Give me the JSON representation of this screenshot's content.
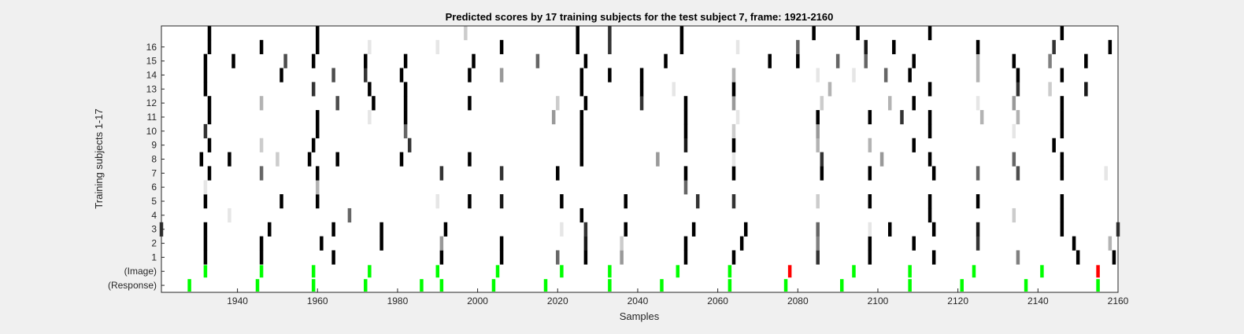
{
  "chart_data": {
    "type": "heatmap",
    "title": "Predicted scores by 17 training subjects for the test subject 7, frame: 1921-2160",
    "xlabel": "Samples",
    "ylabel": "Training subjects 1-17",
    "xlim": [
      1921,
      2160
    ],
    "xticks": [
      1940,
      1960,
      1980,
      2000,
      2020,
      2040,
      2060,
      2080,
      2100,
      2120,
      2140,
      2160
    ],
    "rows": [
      "(Response)",
      "(Image)",
      "1",
      "2",
      "3",
      "4",
      "5",
      "6",
      "7",
      "8",
      "9",
      "10",
      "11",
      "12",
      "13",
      "14",
      "15",
      "16",
      ""
    ],
    "colors": {
      "high": "#000000",
      "low": "#ffffff",
      "response": "#00ff00",
      "image_match": "#00ff00",
      "image_mismatch": "#ff0000"
    },
    "response_events": [
      1928,
      1945,
      1959,
      1972,
      1986,
      1991,
      2004,
      2017,
      2033,
      2046,
      2063,
      2077,
      2091,
      2108,
      2121,
      2137,
      2155
    ],
    "image_events": [
      {
        "x": 1932,
        "status": "match"
      },
      {
        "x": 1946,
        "status": "match"
      },
      {
        "x": 1959,
        "status": "match"
      },
      {
        "x": 1973,
        "status": "match"
      },
      {
        "x": 1990,
        "status": "match"
      },
      {
        "x": 2005,
        "status": "match"
      },
      {
        "x": 2021,
        "status": "match"
      },
      {
        "x": 2033,
        "status": "match"
      },
      {
        "x": 2050,
        "status": "match"
      },
      {
        "x": 2063,
        "status": "match"
      },
      {
        "x": 2078,
        "status": "mismatch"
      },
      {
        "x": 2094,
        "status": "match"
      },
      {
        "x": 2108,
        "status": "match"
      },
      {
        "x": 2124,
        "status": "match"
      },
      {
        "x": 2141,
        "status": "match"
      },
      {
        "x": 2155,
        "status": "mismatch"
      }
    ],
    "score_cells": [
      {
        "row": "1",
        "x": 1932,
        "v": 1
      },
      {
        "row": "1",
        "x": 1946,
        "v": 1
      },
      {
        "row": "1",
        "x": 1964,
        "v": 1
      },
      {
        "row": "1",
        "x": 1991,
        "v": 1
      },
      {
        "row": "1",
        "x": 2006,
        "v": 1
      },
      {
        "row": "1",
        "x": 2020,
        "v": 0.6
      },
      {
        "row": "1",
        "x": 2027,
        "v": 1
      },
      {
        "row": "1",
        "x": 2036,
        "v": 0.4
      },
      {
        "row": "1",
        "x": 2052,
        "v": 1
      },
      {
        "row": "1",
        "x": 2064,
        "v": 1
      },
      {
        "row": "1",
        "x": 2085,
        "v": 0.8
      },
      {
        "row": "1",
        "x": 2098,
        "v": 1
      },
      {
        "row": "1",
        "x": 2114,
        "v": 1
      },
      {
        "row": "1",
        "x": 2135,
        "v": 0.5
      },
      {
        "row": "1",
        "x": 2150,
        "v": 1
      },
      {
        "row": "1",
        "x": 2159,
        "v": 1
      },
      {
        "row": "2",
        "x": 1932,
        "v": 1
      },
      {
        "row": "2",
        "x": 1946,
        "v": 1
      },
      {
        "row": "2",
        "x": 1961,
        "v": 1
      },
      {
        "row": "2",
        "x": 1976,
        "v": 1
      },
      {
        "row": "2",
        "x": 1991,
        "v": 0.4
      },
      {
        "row": "2",
        "x": 2006,
        "v": 1
      },
      {
        "row": "2",
        "x": 2027,
        "v": 0.9
      },
      {
        "row": "2",
        "x": 2036,
        "v": 0.2
      },
      {
        "row": "2",
        "x": 2052,
        "v": 1
      },
      {
        "row": "2",
        "x": 2066,
        "v": 1
      },
      {
        "row": "2",
        "x": 2085,
        "v": 0.5
      },
      {
        "row": "2",
        "x": 2098,
        "v": 1
      },
      {
        "row": "2",
        "x": 2109,
        "v": 1
      },
      {
        "row": "2",
        "x": 2125,
        "v": 0.8
      },
      {
        "row": "2",
        "x": 2149,
        "v": 1
      },
      {
        "row": "2",
        "x": 2158,
        "v": 0.3
      },
      {
        "row": "3",
        "x": 1921,
        "v": 0.8
      },
      {
        "row": "3",
        "x": 1932,
        "v": 1
      },
      {
        "row": "3",
        "x": 1948,
        "v": 1
      },
      {
        "row": "3",
        "x": 1964,
        "v": 1
      },
      {
        "row": "3",
        "x": 1976,
        "v": 1
      },
      {
        "row": "3",
        "x": 1992,
        "v": 1
      },
      {
        "row": "3",
        "x": 2021,
        "v": 0.1
      },
      {
        "row": "3",
        "x": 2027,
        "v": 0.8
      },
      {
        "row": "3",
        "x": 2037,
        "v": 1
      },
      {
        "row": "3",
        "x": 2054,
        "v": 1
      },
      {
        "row": "3",
        "x": 2067,
        "v": 1
      },
      {
        "row": "3",
        "x": 2085,
        "v": 0.6
      },
      {
        "row": "3",
        "x": 2098,
        "v": 0.1
      },
      {
        "row": "3",
        "x": 2103,
        "v": 1
      },
      {
        "row": "3",
        "x": 2114,
        "v": 1
      },
      {
        "row": "3",
        "x": 2125,
        "v": 0.9
      },
      {
        "row": "3",
        "x": 2146,
        "v": 1
      },
      {
        "row": "3",
        "x": 2160,
        "v": 0.8
      },
      {
        "row": "4",
        "x": 1938,
        "v": 0.1
      },
      {
        "row": "4",
        "x": 1968,
        "v": 0.6
      },
      {
        "row": "4",
        "x": 2026,
        "v": 1
      },
      {
        "row": "4",
        "x": 2113,
        "v": 1
      },
      {
        "row": "4",
        "x": 2134,
        "v": 0.2
      },
      {
        "row": "4",
        "x": 2146,
        "v": 1
      },
      {
        "row": "5",
        "x": 1932,
        "v": 1
      },
      {
        "row": "5",
        "x": 1951,
        "v": 1
      },
      {
        "row": "5",
        "x": 1960,
        "v": 1
      },
      {
        "row": "5",
        "x": 1990,
        "v": 0.1
      },
      {
        "row": "5",
        "x": 1998,
        "v": 1
      },
      {
        "row": "5",
        "x": 2006,
        "v": 0.9
      },
      {
        "row": "5",
        "x": 2021,
        "v": 1
      },
      {
        "row": "5",
        "x": 2037,
        "v": 1
      },
      {
        "row": "5",
        "x": 2055,
        "v": 0.8
      },
      {
        "row": "5",
        "x": 2064,
        "v": 0.8
      },
      {
        "row": "5",
        "x": 2085,
        "v": 0.2
      },
      {
        "row": "5",
        "x": 2098,
        "v": 1
      },
      {
        "row": "5",
        "x": 2113,
        "v": 1
      },
      {
        "row": "5",
        "x": 2125,
        "v": 1
      },
      {
        "row": "5",
        "x": 2146,
        "v": 1
      },
      {
        "row": "6",
        "x": 1932,
        "v": 0.1
      },
      {
        "row": "6",
        "x": 1960,
        "v": 0.3
      },
      {
        "row": "6",
        "x": 2052,
        "v": 0.6
      },
      {
        "row": "7",
        "x": 1933,
        "v": 1
      },
      {
        "row": "7",
        "x": 1946,
        "v": 0.6
      },
      {
        "row": "7",
        "x": 1960,
        "v": 1
      },
      {
        "row": "7",
        "x": 1991,
        "v": 0.8
      },
      {
        "row": "7",
        "x": 2006,
        "v": 0.8
      },
      {
        "row": "7",
        "x": 2020,
        "v": 1
      },
      {
        "row": "7",
        "x": 2052,
        "v": 1
      },
      {
        "row": "7",
        "x": 2064,
        "v": 1
      },
      {
        "row": "7",
        "x": 2086,
        "v": 1
      },
      {
        "row": "7",
        "x": 2098,
        "v": 1
      },
      {
        "row": "7",
        "x": 2114,
        "v": 1
      },
      {
        "row": "7",
        "x": 2125,
        "v": 0.6
      },
      {
        "row": "7",
        "x": 2135,
        "v": 0.7
      },
      {
        "row": "7",
        "x": 2146,
        "v": 1
      },
      {
        "row": "7",
        "x": 2157,
        "v": 0.1
      },
      {
        "row": "8",
        "x": 1931,
        "v": 1
      },
      {
        "row": "8",
        "x": 1938,
        "v": 1
      },
      {
        "row": "8",
        "x": 1950,
        "v": 0.2
      },
      {
        "row": "8",
        "x": 1958,
        "v": 1
      },
      {
        "row": "8",
        "x": 1965,
        "v": 1
      },
      {
        "row": "8",
        "x": 1981,
        "v": 1
      },
      {
        "row": "8",
        "x": 1998,
        "v": 1
      },
      {
        "row": "8",
        "x": 2026,
        "v": 1
      },
      {
        "row": "8",
        "x": 2045,
        "v": 0.4
      },
      {
        "row": "8",
        "x": 2064,
        "v": 0.1
      },
      {
        "row": "8",
        "x": 2086,
        "v": 0.8
      },
      {
        "row": "8",
        "x": 2101,
        "v": 0.4
      },
      {
        "row": "8",
        "x": 2113,
        "v": 1
      },
      {
        "row": "8",
        "x": 2134,
        "v": 0.6
      },
      {
        "row": "8",
        "x": 2146,
        "v": 1
      },
      {
        "row": "9",
        "x": 1933,
        "v": 1
      },
      {
        "row": "9",
        "x": 1946,
        "v": 0.2
      },
      {
        "row": "9",
        "x": 1959,
        "v": 1
      },
      {
        "row": "9",
        "x": 1983,
        "v": 0.8
      },
      {
        "row": "9",
        "x": 2026,
        "v": 1
      },
      {
        "row": "9",
        "x": 2052,
        "v": 0.9
      },
      {
        "row": "9",
        "x": 2064,
        "v": 1
      },
      {
        "row": "9",
        "x": 2085,
        "v": 0.3
      },
      {
        "row": "9",
        "x": 2098,
        "v": 0.3
      },
      {
        "row": "9",
        "x": 2109,
        "v": 1
      },
      {
        "row": "9",
        "x": 2144,
        "v": 1
      },
      {
        "row": "10",
        "x": 1932,
        "v": 0.8
      },
      {
        "row": "10",
        "x": 1960,
        "v": 1
      },
      {
        "row": "10",
        "x": 1982,
        "v": 0.6
      },
      {
        "row": "10",
        "x": 2026,
        "v": 1
      },
      {
        "row": "10",
        "x": 2052,
        "v": 1
      },
      {
        "row": "10",
        "x": 2064,
        "v": 0.2
      },
      {
        "row": "10",
        "x": 2085,
        "v": 0.4
      },
      {
        "row": "10",
        "x": 2113,
        "v": 1
      },
      {
        "row": "10",
        "x": 2134,
        "v": 0.1
      },
      {
        "row": "10",
        "x": 2146,
        "v": 1
      },
      {
        "row": "11",
        "x": 1933,
        "v": 1
      },
      {
        "row": "11",
        "x": 1960,
        "v": 1
      },
      {
        "row": "11",
        "x": 1973,
        "v": 0.1
      },
      {
        "row": "11",
        "x": 1982,
        "v": 1
      },
      {
        "row": "11",
        "x": 2019,
        "v": 0.4
      },
      {
        "row": "11",
        "x": 2026,
        "v": 1
      },
      {
        "row": "11",
        "x": 2052,
        "v": 1
      },
      {
        "row": "11",
        "x": 2065,
        "v": 0.1
      },
      {
        "row": "11",
        "x": 2085,
        "v": 1
      },
      {
        "row": "11",
        "x": 2098,
        "v": 1
      },
      {
        "row": "11",
        "x": 2106,
        "v": 0.8
      },
      {
        "row": "11",
        "x": 2113,
        "v": 1
      },
      {
        "row": "11",
        "x": 2126,
        "v": 0.3
      },
      {
        "row": "11",
        "x": 2135,
        "v": 0.3
      },
      {
        "row": "11",
        "x": 2146,
        "v": 1
      },
      {
        "row": "12",
        "x": 1933,
        "v": 1
      },
      {
        "row": "12",
        "x": 1946,
        "v": 0.3
      },
      {
        "row": "12",
        "x": 1965,
        "v": 0.7
      },
      {
        "row": "12",
        "x": 1974,
        "v": 1
      },
      {
        "row": "12",
        "x": 1982,
        "v": 1
      },
      {
        "row": "12",
        "x": 1998,
        "v": 1
      },
      {
        "row": "12",
        "x": 2020,
        "v": 0.2
      },
      {
        "row": "12",
        "x": 2027,
        "v": 1
      },
      {
        "row": "12",
        "x": 2041,
        "v": 0.8
      },
      {
        "row": "12",
        "x": 2052,
        "v": 1
      },
      {
        "row": "12",
        "x": 2064,
        "v": 0.4
      },
      {
        "row": "12",
        "x": 2086,
        "v": 0.2
      },
      {
        "row": "12",
        "x": 2103,
        "v": 0.3
      },
      {
        "row": "12",
        "x": 2109,
        "v": 1
      },
      {
        "row": "12",
        "x": 2125,
        "v": 0.1
      },
      {
        "row": "12",
        "x": 2134,
        "v": 0.4
      },
      {
        "row": "12",
        "x": 2146,
        "v": 1
      },
      {
        "row": "13",
        "x": 1932,
        "v": 1
      },
      {
        "row": "13",
        "x": 1959,
        "v": 0.8
      },
      {
        "row": "13",
        "x": 1973,
        "v": 1
      },
      {
        "row": "13",
        "x": 1982,
        "v": 1
      },
      {
        "row": "13",
        "x": 2026,
        "v": 1
      },
      {
        "row": "13",
        "x": 2041,
        "v": 1
      },
      {
        "row": "13",
        "x": 2049,
        "v": 0.1
      },
      {
        "row": "13",
        "x": 2064,
        "v": 1
      },
      {
        "row": "13",
        "x": 2088,
        "v": 0.3
      },
      {
        "row": "13",
        "x": 2113,
        "v": 1
      },
      {
        "row": "13",
        "x": 2135,
        "v": 0.8
      },
      {
        "row": "13",
        "x": 2143,
        "v": 0.2
      },
      {
        "row": "13",
        "x": 2152,
        "v": 0.9
      },
      {
        "row": "14",
        "x": 1932,
        "v": 1
      },
      {
        "row": "14",
        "x": 1951,
        "v": 1
      },
      {
        "row": "14",
        "x": 1964,
        "v": 0.7
      },
      {
        "row": "14",
        "x": 1972,
        "v": 0.8
      },
      {
        "row": "14",
        "x": 1981,
        "v": 1
      },
      {
        "row": "14",
        "x": 1998,
        "v": 1
      },
      {
        "row": "14",
        "x": 2006,
        "v": 0.4
      },
      {
        "row": "14",
        "x": 2026,
        "v": 1
      },
      {
        "row": "14",
        "x": 2033,
        "v": 1
      },
      {
        "row": "14",
        "x": 2041,
        "v": 1
      },
      {
        "row": "14",
        "x": 2064,
        "v": 0.3
      },
      {
        "row": "14",
        "x": 2085,
        "v": 0.1
      },
      {
        "row": "14",
        "x": 2094,
        "v": 0.1
      },
      {
        "row": "14",
        "x": 2102,
        "v": 0.6
      },
      {
        "row": "14",
        "x": 2108,
        "v": 1
      },
      {
        "row": "14",
        "x": 2125,
        "v": 0.3
      },
      {
        "row": "14",
        "x": 2135,
        "v": 1
      },
      {
        "row": "14",
        "x": 2146,
        "v": 1
      },
      {
        "row": "15",
        "x": 1932,
        "v": 1
      },
      {
        "row": "15",
        "x": 1939,
        "v": 1
      },
      {
        "row": "15",
        "x": 1952,
        "v": 0.7
      },
      {
        "row": "15",
        "x": 1959,
        "v": 1
      },
      {
        "row": "15",
        "x": 1972,
        "v": 1
      },
      {
        "row": "15",
        "x": 1982,
        "v": 1
      },
      {
        "row": "15",
        "x": 1999,
        "v": 1
      },
      {
        "row": "15",
        "x": 2015,
        "v": 0.6
      },
      {
        "row": "15",
        "x": 2027,
        "v": 1
      },
      {
        "row": "15",
        "x": 2047,
        "v": 1
      },
      {
        "row": "15",
        "x": 2073,
        "v": 1
      },
      {
        "row": "15",
        "x": 2080,
        "v": 1
      },
      {
        "row": "15",
        "x": 2090,
        "v": 0.6
      },
      {
        "row": "15",
        "x": 2097,
        "v": 0.6
      },
      {
        "row": "15",
        "x": 2109,
        "v": 1
      },
      {
        "row": "15",
        "x": 2125,
        "v": 0.3
      },
      {
        "row": "15",
        "x": 2134,
        "v": 1
      },
      {
        "row": "15",
        "x": 2143,
        "v": 0.5
      },
      {
        "row": "15",
        "x": 2152,
        "v": 1
      },
      {
        "row": "16",
        "x": 1933,
        "v": 1
      },
      {
        "row": "16",
        "x": 1946,
        "v": 1
      },
      {
        "row": "16",
        "x": 1960,
        "v": 1
      },
      {
        "row": "16",
        "x": 1973,
        "v": 0.1
      },
      {
        "row": "16",
        "x": 1990,
        "v": 0.1
      },
      {
        "row": "16",
        "x": 2006,
        "v": 1
      },
      {
        "row": "16",
        "x": 2025,
        "v": 1
      },
      {
        "row": "16",
        "x": 2033,
        "v": 0.8
      },
      {
        "row": "16",
        "x": 2051,
        "v": 1
      },
      {
        "row": "16",
        "x": 2065,
        "v": 0.1
      },
      {
        "row": "16",
        "x": 2080,
        "v": 0.6
      },
      {
        "row": "16",
        "x": 2097,
        "v": 0.9
      },
      {
        "row": "16",
        "x": 2104,
        "v": 1
      },
      {
        "row": "16",
        "x": 2125,
        "v": 1
      },
      {
        "row": "16",
        "x": 2144,
        "v": 0.8
      },
      {
        "row": "16",
        "x": 2158,
        "v": 1
      },
      {
        "row": "",
        "x": 1933,
        "v": 1
      },
      {
        "row": "",
        "x": 1960,
        "v": 1
      },
      {
        "row": "",
        "x": 1997,
        "v": 0.2
      },
      {
        "row": "",
        "x": 2025,
        "v": 1
      },
      {
        "row": "",
        "x": 2033,
        "v": 0.8
      },
      {
        "row": "",
        "x": 2051,
        "v": 1
      },
      {
        "row": "",
        "x": 2084,
        "v": 1
      },
      {
        "row": "",
        "x": 2095,
        "v": 1
      },
      {
        "row": "",
        "x": 2113,
        "v": 1
      },
      {
        "row": "",
        "x": 2146,
        "v": 1
      }
    ]
  }
}
